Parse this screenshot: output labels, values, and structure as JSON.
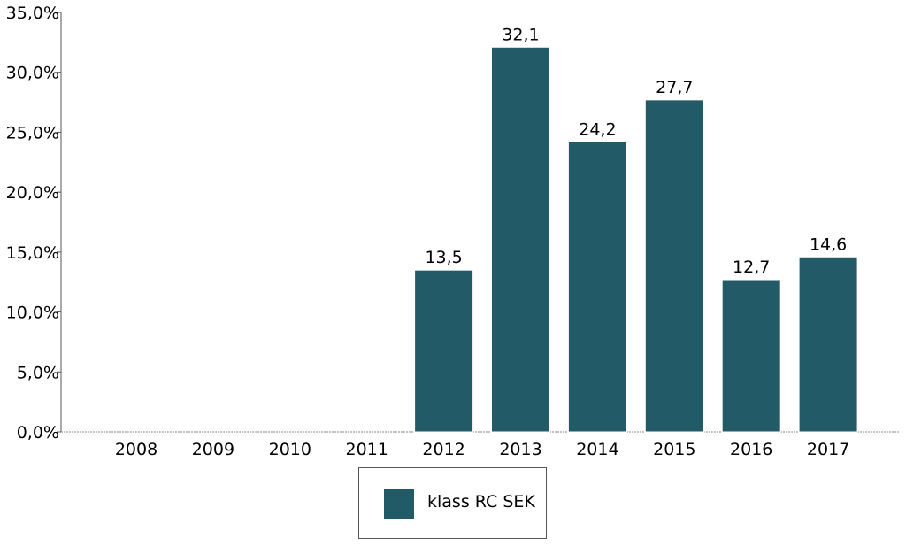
{
  "chart_data": {
    "type": "bar",
    "categories": [
      "2008",
      "2009",
      "2010",
      "2011",
      "2012",
      "2013",
      "2014",
      "2015",
      "2016",
      "2017"
    ],
    "series": [
      {
        "name": "klass RC SEK",
        "values": [
          null,
          null,
          null,
          null,
          13.5,
          32.1,
          24.2,
          27.7,
          12.7,
          14.6
        ],
        "data_labels": [
          "",
          "",
          "",
          "",
          "13,5",
          "32,1",
          "24,2",
          "27,7",
          "12,7",
          "14,6"
        ],
        "color": "#235a68"
      }
    ],
    "y_ticks": [
      "0,0%",
      "5,0%",
      "10,0%",
      "15,0%",
      "20,0%",
      "25,0%",
      "30,0%",
      "35,0%"
    ],
    "ylim": [
      0,
      35
    ],
    "grid": false,
    "legend_position": "bottom-center",
    "title": "",
    "xlabel": "",
    "ylabel": ""
  },
  "legend": {
    "label": "klass RC SEK"
  }
}
